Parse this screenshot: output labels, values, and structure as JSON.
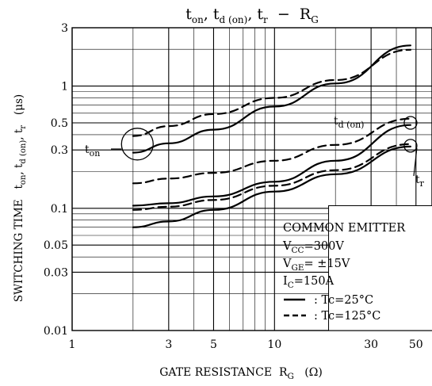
{
  "chart_data": {
    "type": "line",
    "title": {
      "a": "t",
      "a_sub": "on",
      "b": ", t",
      "b_sub": "d (on)",
      "c": ", t",
      "c_sub": "r",
      "d": "  −  R",
      "d_sub": "G"
    },
    "xlabel": {
      "text": "GATE RESISTANCE  R",
      "sub": "G",
      "unit": "   (Ω)"
    },
    "ylabel": {
      "text": "SWITCHING TIME   t",
      "s1": "on",
      "m1": ", t",
      "s2": "d (on)",
      "m2": ", t",
      "s3": "r",
      "unit": "   (μs)"
    },
    "x_scale": "log",
    "y_scale": "log",
    "xlim": [
      1,
      60
    ],
    "ylim": [
      0.01,
      3
    ],
    "x_ticks": [
      {
        "value": 1,
        "label": "1"
      },
      {
        "value": 3,
        "label": "3"
      },
      {
        "value": 5,
        "label": "5"
      },
      {
        "value": 10,
        "label": "10"
      },
      {
        "value": 30,
        "label": "30"
      },
      {
        "value": 50,
        "label": "50"
      }
    ],
    "y_ticks": [
      {
        "value": 0.01,
        "label": "0.01"
      },
      {
        "value": 0.03,
        "label": "0.03"
      },
      {
        "value": 0.05,
        "label": "0.05"
      },
      {
        "value": 0.1,
        "label": "0.1"
      },
      {
        "value": 0.3,
        "label": "0.3"
      },
      {
        "value": 0.5,
        "label": "0.5"
      },
      {
        "value": 1,
        "label": "1"
      },
      {
        "value": 3,
        "label": "3"
      }
    ],
    "grid": true,
    "series": [
      {
        "group": "on",
        "style": "solid",
        "x": [
          2,
          3,
          5,
          10,
          20,
          47
        ],
        "y": [
          0.285,
          0.34,
          0.44,
          0.68,
          1.05,
          2.15
        ]
      },
      {
        "group": "on",
        "style": "dashed",
        "x": [
          2,
          3,
          5,
          10,
          20,
          47
        ],
        "y": [
          0.39,
          0.47,
          0.59,
          0.8,
          1.12,
          1.98
        ]
      },
      {
        "group": "d_on",
        "style": "solid",
        "x": [
          2,
          3,
          5,
          10,
          20,
          47
        ],
        "y": [
          0.105,
          0.11,
          0.125,
          0.165,
          0.245,
          0.48
        ]
      },
      {
        "group": "d_on",
        "style": "dashed",
        "x": [
          2,
          3,
          5,
          10,
          20,
          47
        ],
        "y": [
          0.16,
          0.175,
          0.195,
          0.245,
          0.33,
          0.54
        ]
      },
      {
        "group": "r",
        "style": "solid",
        "x": [
          2,
          3,
          5,
          10,
          20,
          47
        ],
        "y": [
          0.07,
          0.078,
          0.097,
          0.137,
          0.19,
          0.32
        ]
      },
      {
        "group": "r",
        "style": "dashed",
        "x": [
          2,
          3,
          5,
          10,
          20,
          47
        ],
        "y": [
          0.097,
          0.103,
          0.117,
          0.153,
          0.205,
          0.335
        ]
      }
    ],
    "annotations": [
      {
        "id": "ton",
        "text": "t",
        "sub": "on"
      },
      {
        "id": "tdon",
        "text": "t",
        "sub": "d (on)"
      },
      {
        "id": "tr",
        "text": "t",
        "sub": "r"
      }
    ],
    "legend": {
      "placement": "bottom-right",
      "lines": [
        {
          "text": "COMMON EMITTER"
        },
        {
          "text": "V",
          "sub": "CC",
          "rest": "=300V"
        },
        {
          "text": "V",
          "sub": "GE",
          "rest": "= ±15V"
        },
        {
          "text": "I",
          "sub": "C",
          "rest": "=150A"
        }
      ],
      "entries": [
        {
          "style": "solid",
          "label": ": Tc=25°C"
        },
        {
          "style": "dashed",
          "label": ": Tc=125°C"
        }
      ]
    }
  }
}
